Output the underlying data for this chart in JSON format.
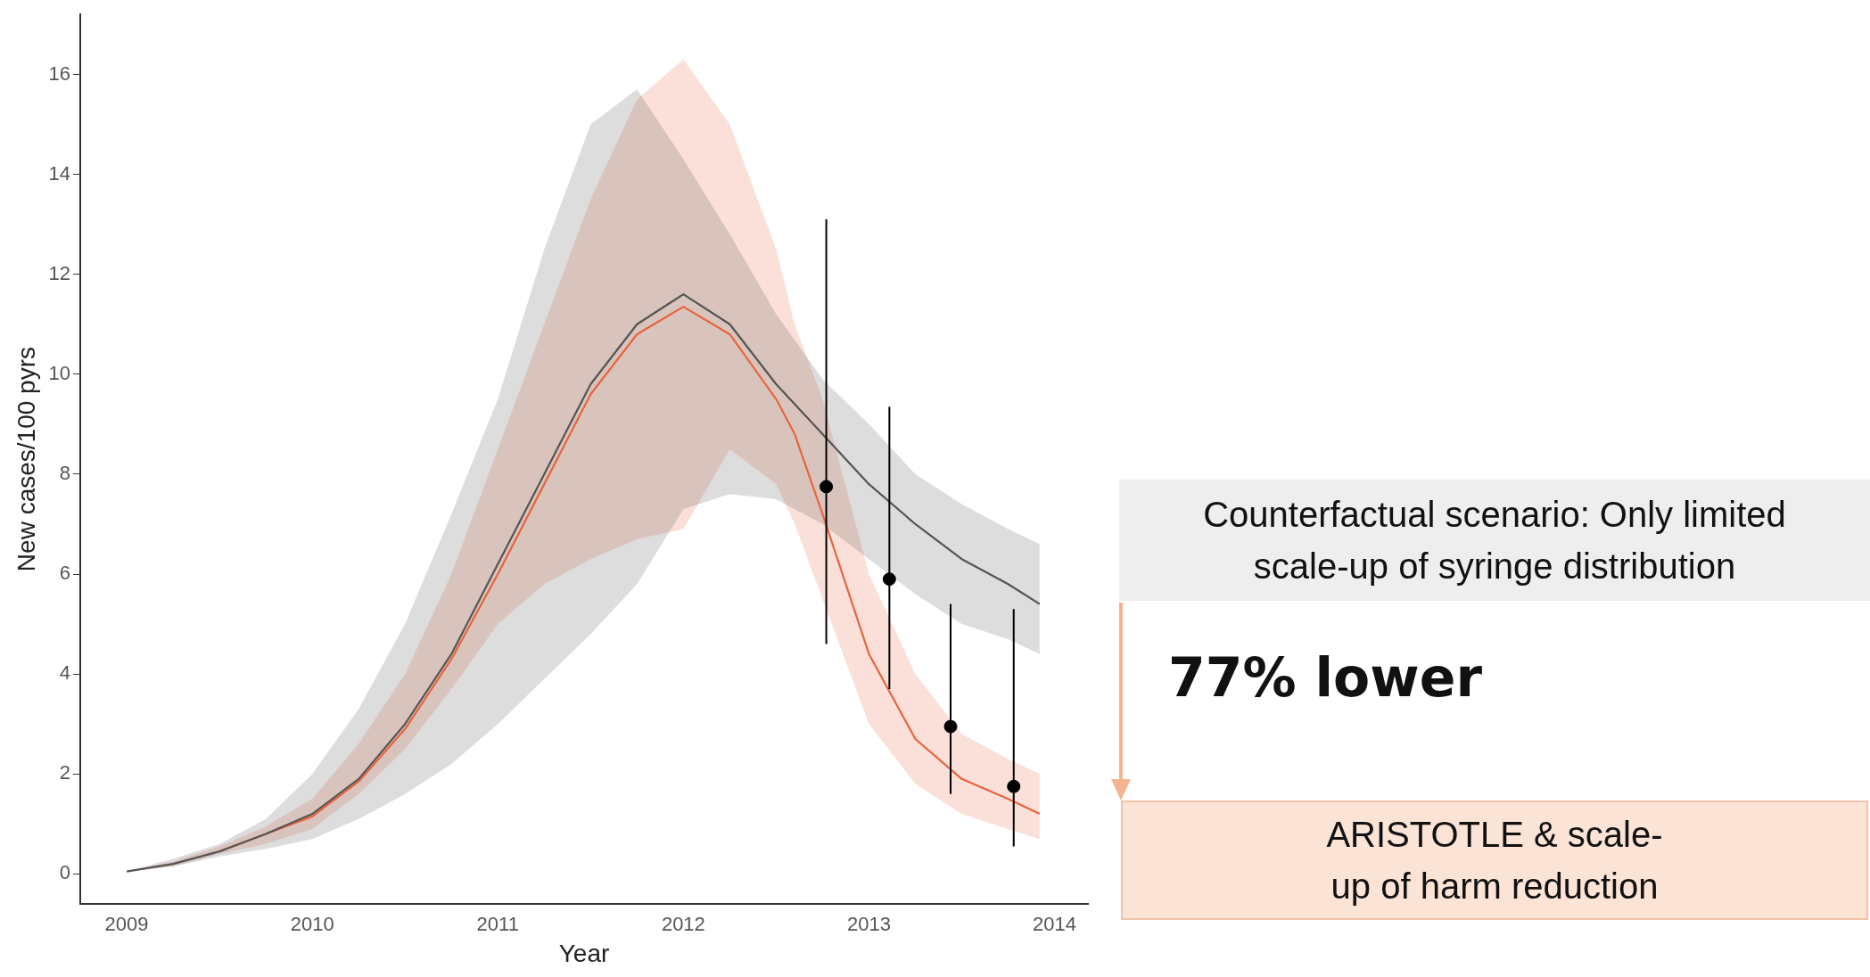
{
  "chart_data": {
    "type": "line",
    "xlabel": "Year",
    "ylabel": "New cases/100 pyrs",
    "xlim": [
      2008.75,
      2014.18
    ],
    "xticks": [
      2009,
      2010,
      2011,
      2012,
      2013,
      2014
    ],
    "ylim": [
      -0.6,
      17.2
    ],
    "yticks": [
      0,
      2,
      4,
      6,
      8,
      10,
      12,
      14,
      16
    ],
    "grid": false,
    "legend": false,
    "marker": "none",
    "series": [
      {
        "color": "#555555",
        "x": [
          2009,
          2009.25,
          2009.5,
          2009.75,
          2010,
          2010.25,
          2010.5,
          2010.75,
          2011,
          2011.25,
          2011.5,
          2011.75,
          2012,
          2012.25,
          2012.5,
          2012.75,
          2013,
          2013.25,
          2013.5,
          2013.75,
          2013.92
        ],
        "values": [
          0.05,
          0.2,
          0.45,
          0.8,
          1.2,
          1.9,
          3.0,
          4.4,
          6.2,
          8.0,
          9.8,
          11.0,
          11.6,
          11.0,
          9.8,
          8.8,
          7.8,
          7.0,
          6.3,
          5.8,
          5.4
        ],
        "lower": [
          0.05,
          0.15,
          0.35,
          0.5,
          0.7,
          1.1,
          1.6,
          2.2,
          3.0,
          3.9,
          4.8,
          5.8,
          7.3,
          7.6,
          7.5,
          7.0,
          6.3,
          5.6,
          5.0,
          4.7,
          4.4
        ],
        "upper": [
          0.05,
          0.3,
          0.6,
          1.1,
          2.0,
          3.3,
          5.0,
          7.2,
          9.5,
          12.5,
          15.0,
          15.7,
          14.3,
          12.8,
          11.2,
          9.9,
          9.0,
          8.0,
          7.4,
          6.9,
          6.6
        ]
      },
      {
        "color": "#e8643c",
        "x": [
          2009,
          2009.25,
          2009.5,
          2009.75,
          2010,
          2010.25,
          2010.5,
          2010.75,
          2011,
          2011.25,
          2011.5,
          2011.75,
          2012,
          2012.25,
          2012.5,
          2012.6,
          2012.75,
          2013,
          2013.25,
          2013.5,
          2013.75,
          2013.92
        ],
        "values": [
          null,
          null,
          0.45,
          0.8,
          1.15,
          1.85,
          2.9,
          4.3,
          6.0,
          7.8,
          9.6,
          10.8,
          11.35,
          10.8,
          9.5,
          8.8,
          7.2,
          4.4,
          2.7,
          1.9,
          1.5,
          1.2
        ],
        "lower": [
          0.05,
          0.15,
          0.4,
          0.6,
          0.9,
          1.6,
          2.5,
          3.7,
          5.0,
          5.8,
          6.3,
          6.7,
          6.9,
          8.5,
          7.8,
          7.0,
          5.5,
          3.0,
          1.8,
          1.2,
          0.9,
          0.7
        ],
        "upper": [
          0.05,
          0.25,
          0.55,
          0.95,
          1.5,
          2.6,
          4.0,
          6.0,
          8.5,
          11.0,
          13.5,
          15.5,
          16.3,
          15.0,
          12.5,
          11.0,
          9.5,
          6.0,
          4.0,
          2.8,
          2.3,
          2.0
        ]
      },
      {
        "type": "scatter",
        "color": "#000000",
        "marker": "circle",
        "x": [
          2012.77,
          2013.11,
          2013.44,
          2013.78
        ],
        "values": [
          7.75,
          5.9,
          2.95,
          1.75
        ],
        "errors": [
          [
            4.6,
            13.1
          ],
          [
            3.7,
            9.35
          ],
          [
            1.6,
            5.4
          ],
          [
            0.55,
            5.3
          ]
        ]
      }
    ],
    "annotations": [
      "Counterfactual scenario: Only limited scale-up of syringe distribution",
      "ARISTOTLE & scale-up of harm reduction",
      "77% lower"
    ]
  }
}
